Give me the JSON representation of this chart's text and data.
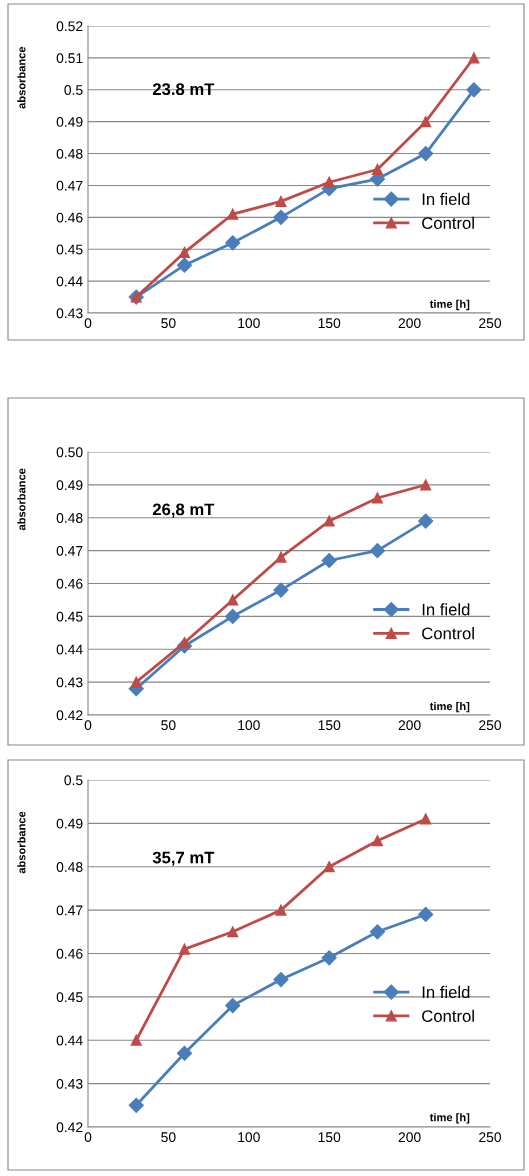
{
  "chart_data": [
    {
      "type": "line",
      "annotations": [
        "23.8 mT"
      ],
      "xlabel": "time [h]",
      "ylabel": "absorbance",
      "x": [
        30,
        60,
        90,
        120,
        150,
        180,
        210,
        240
      ],
      "series": [
        {
          "name": "In field",
          "color": "#4a7ebb",
          "marker": "diamond",
          "values": [
            0.435,
            0.445,
            0.452,
            0.46,
            0.469,
            0.472,
            0.48,
            0.5
          ]
        },
        {
          "name": "Control",
          "color": "#be4b48",
          "marker": "triangle",
          "values": [
            0.435,
            0.449,
            0.461,
            0.465,
            0.471,
            0.475,
            0.49,
            0.51
          ]
        }
      ],
      "xlim": [
        0,
        250
      ],
      "xticks": [
        0,
        50,
        100,
        150,
        200,
        250
      ],
      "ylim": [
        0.43,
        0.52
      ],
      "yticks": [
        0.43,
        0.44,
        0.45,
        0.46,
        0.47,
        0.48,
        0.49,
        0.5,
        0.51,
        0.52
      ],
      "grid": "y",
      "legend": "right",
      "line_style": "solid"
    },
    {
      "type": "line",
      "annotations": [
        "26,8 mT"
      ],
      "xlabel": "time [h]",
      "ylabel": "absorbance",
      "x": [
        30,
        60,
        90,
        120,
        150,
        180,
        210
      ],
      "series": [
        {
          "name": "In field",
          "color": "#4a7ebb",
          "marker": "diamond",
          "values": [
            0.428,
            0.441,
            0.45,
            0.458,
            0.467,
            0.47,
            0.479
          ]
        },
        {
          "name": "Control",
          "color": "#be4b48",
          "marker": "triangle",
          "values": [
            0.43,
            0.442,
            0.455,
            0.468,
            0.479,
            0.486,
            0.49
          ]
        }
      ],
      "xlim": [
        0,
        250
      ],
      "xticks": [
        0,
        50,
        100,
        150,
        200,
        250
      ],
      "ylim": [
        0.42,
        0.5
      ],
      "yticks": [
        0.42,
        0.43,
        0.44,
        0.45,
        0.46,
        0.47,
        0.48,
        0.49,
        {
          "value": 0.5,
          "label": "0.50"
        }
      ],
      "grid": "y",
      "legend": "right",
      "line_style": "solid"
    },
    {
      "type": "line",
      "annotations": [
        "35,7 mT"
      ],
      "xlabel": "time [h]",
      "ylabel": "absorbance",
      "x": [
        30,
        60,
        90,
        120,
        150,
        180,
        210
      ],
      "series": [
        {
          "name": "In field",
          "color": "#4a7ebb",
          "marker": "diamond",
          "values": [
            0.425,
            0.437,
            0.448,
            0.454,
            0.459,
            0.465,
            0.469
          ]
        },
        {
          "name": "Control",
          "color": "#be4b48",
          "marker": "triangle",
          "values": [
            0.44,
            0.461,
            0.465,
            0.47,
            0.48,
            0.486,
            0.491
          ]
        }
      ],
      "xlim": [
        0,
        250
      ],
      "xticks": [
        0,
        50,
        100,
        150,
        200,
        250
      ],
      "ylim": [
        0.42,
        0.5
      ],
      "yticks": [
        0.42,
        0.43,
        0.44,
        0.45,
        0.46,
        0.47,
        0.48,
        0.49,
        0.5
      ],
      "grid": "y",
      "legend": "right",
      "line_style": "solid"
    }
  ]
}
